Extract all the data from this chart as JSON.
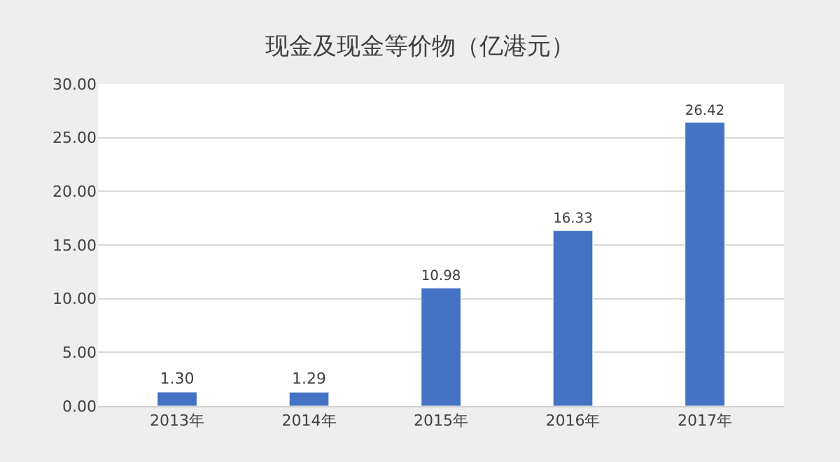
{
  "chart_data": {
    "type": "bar",
    "title": "现金及现金等价物（亿港元）",
    "categories": [
      "2013年",
      "2014年",
      "2015年",
      "2016年",
      "2017年"
    ],
    "values": [
      1.3,
      1.29,
      10.98,
      16.33,
      26.42
    ],
    "value_labels": [
      "1.30",
      "1.29",
      "10.98",
      "16.33",
      "26.42"
    ],
    "color": "#4472c4",
    "ylim": [
      0,
      30
    ],
    "yticks": [
      {
        "value": 0,
        "label": "0.00"
      },
      {
        "value": 5,
        "label": "5.00"
      },
      {
        "value": 10,
        "label": "10.00"
      },
      {
        "value": 15,
        "label": "15.00"
      },
      {
        "value": 20,
        "label": "20.00"
      },
      {
        "value": 25,
        "label": "25.00"
      },
      {
        "value": 30,
        "label": "30.00"
      }
    ],
    "grid": "y"
  }
}
